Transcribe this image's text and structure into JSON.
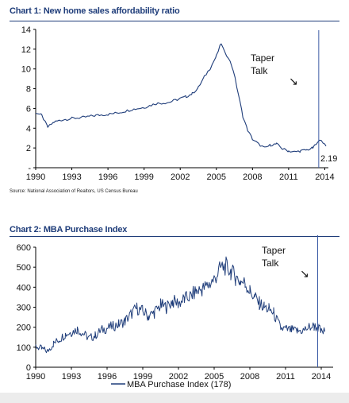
{
  "chart_data": [
    {
      "type": "line",
      "title": "Chart 1: New home sales affordability ratio",
      "source": "Source: National Association of Realtors, US Census Bureau",
      "xlabel": "",
      "ylabel": "",
      "xlim": [
        1990,
        2014.3
      ],
      "ylim": [
        0,
        14
      ],
      "x_ticks": [
        "1990",
        "1993",
        "1996",
        "1999",
        "2002",
        "2005",
        "2008",
        "2011",
        "2014"
      ],
      "y_ticks": [
        "-",
        "2",
        "4",
        "6",
        "8",
        "10",
        "12",
        "14"
      ],
      "grid": false,
      "line_color": "#1f3d7a",
      "annotation": {
        "line1": "Taper",
        "line2": "Talk",
        "arrow": "↘",
        "at_x": 2013.5
      },
      "end_label": "2.19",
      "series": [
        {
          "x": [
            1990,
            1990.5,
            1991,
            1991.5,
            1992,
            1993,
            1994,
            1995,
            1996,
            1997,
            1998,
            1999,
            2000,
            2001,
            2002,
            2002.5,
            2003,
            2003.5,
            2004,
            2004.5,
            2005,
            2005.4,
            2005.7,
            2006,
            2006.4,
            2006.8,
            2007.2,
            2007.6,
            2008,
            2008.5,
            2009,
            2009.5,
            2010,
            2010.5,
            2011,
            2011.5,
            2012,
            2012.5,
            2013,
            2013.4,
            2013.7,
            2014,
            2014.1
          ],
          "y": [
            5.6,
            5.3,
            4.1,
            4.6,
            4.8,
            5.0,
            5.1,
            5.3,
            5.4,
            5.6,
            5.9,
            6.1,
            6.5,
            6.6,
            7.0,
            7.2,
            7.5,
            8.1,
            9.2,
            10.1,
            11.3,
            12.6,
            11.6,
            11.2,
            9.9,
            7.6,
            5.2,
            3.8,
            2.9,
            2.4,
            2.0,
            2.3,
            2.4,
            1.9,
            1.7,
            1.6,
            1.7,
            1.8,
            2.0,
            2.5,
            2.9,
            2.3,
            2.19
          ]
        }
      ]
    },
    {
      "type": "line",
      "title": "Chart 2: MBA Purchase Index",
      "xlabel": "",
      "ylabel": "",
      "xlim": [
        1990,
        2015
      ],
      "ylim": [
        0,
        600
      ],
      "x_ticks": [
        "1990",
        "1993",
        "1996",
        "1999",
        "2002",
        "2005",
        "2008",
        "2011",
        "2014"
      ],
      "y_ticks": [
        "0",
        "100",
        "200",
        "300",
        "400",
        "500",
        "600"
      ],
      "grid": false,
      "line_color": "#1f3d7a",
      "annotation": {
        "line1": "Taper",
        "line2": "Talk",
        "arrow": "↘",
        "at_x": 2013.7
      },
      "legend": "MBA Purchase Index (178)",
      "legend_position": "bottom",
      "series": [
        {
          "name": "MBA Purchase Index (178)",
          "x": [
            1990,
            1990.5,
            1991,
            1991.5,
            1992,
            1992.5,
            1993,
            1993.5,
            1994,
            1994.5,
            1995,
            1995.5,
            1996,
            1996.5,
            1997,
            1997.5,
            1998,
            1998.5,
            1999,
            1999.5,
            2000,
            2000.5,
            2001,
            2001.5,
            2002,
            2002.5,
            2003,
            2003.5,
            2004,
            2004.5,
            2005,
            2005.3,
            2005.6,
            2006,
            2006.4,
            2006.8,
            2007.2,
            2007.6,
            2008,
            2008.4,
            2008.8,
            2009.2,
            2009.6,
            2010,
            2010.3,
            2010.6,
            2011,
            2011.5,
            2012,
            2012.5,
            2013,
            2013.4,
            2013.8,
            2014,
            2014.3
          ],
          "y": [
            105,
            92,
            80,
            118,
            140,
            165,
            175,
            190,
            168,
            145,
            158,
            185,
            195,
            205,
            215,
            230,
            265,
            295,
            280,
            255,
            275,
            310,
            300,
            330,
            320,
            340,
            355,
            380,
            390,
            410,
            440,
            470,
            500,
            505,
            480,
            450,
            430,
            420,
            380,
            350,
            320,
            300,
            290,
            270,
            230,
            195,
            190,
            185,
            180,
            185,
            200,
            205,
            195,
            175,
            178
          ]
        }
      ]
    }
  ]
}
